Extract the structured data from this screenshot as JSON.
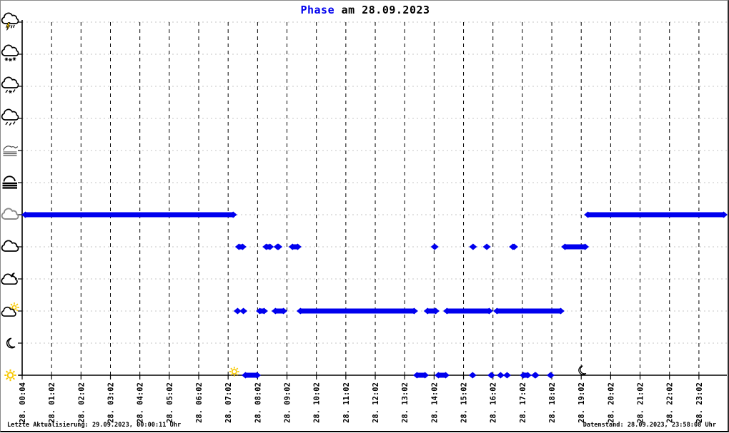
{
  "title": {
    "keyword": "Phase",
    "rest": " am 28.09.2023"
  },
  "footer": {
    "left": "Letzte Aktualisierung: 29.09.2023, 00:00:11 Uhr",
    "right": "Datenstand: 28.09.2023, 23:58:08 Uhr"
  },
  "colors": {
    "series": "#0000ee",
    "title_highlight": "#0000ee",
    "axis": "#000000",
    "grid_vertical": "#000000",
    "grid_horizontal": "#c4c4c4",
    "sun_yellow": "#f7c800",
    "overcast_gray": "#8a8a8a",
    "icon_black": "#000000"
  },
  "chart_data": {
    "type": "scatter",
    "title": "Phase am 28.09.2023",
    "xlabel": "",
    "ylabel": "",
    "x_range_hours": [
      0,
      24
    ],
    "grid": "both-dashed",
    "x_tick_labels": [
      "28. 00:04",
      "28. 01:02",
      "28. 02:02",
      "28. 03:02",
      "28. 04:02",
      "28. 05:02",
      "28. 06:02",
      "28. 07:02",
      "28. 08:02",
      "28. 09:02",
      "28. 10:02",
      "28. 11:02",
      "28. 12:02",
      "28. 13:02",
      "28. 14:02",
      "28. 15:02",
      "28. 16:02",
      "28. 17:02",
      "28. 18:02",
      "28. 19:02",
      "28. 20:02",
      "28. 21:02",
      "28. 22:02",
      "28. 23:02"
    ],
    "y_levels": [
      "thunderstorm",
      "snow",
      "sleet",
      "rain",
      "mist",
      "fog",
      "overcast",
      "cloudy",
      "partly-cloudy-night",
      "partly-cloudy-day",
      "clear-night",
      "clear-day"
    ],
    "series": [
      {
        "name": "phase",
        "color": "#0000ee",
        "segments": [
          {
            "level": "overcast",
            "runs": [
              [
                0.0,
                7.28
              ],
              [
                19.12,
                23.95
              ]
            ]
          },
          {
            "level": "cloudy",
            "runs": [
              [
                7.26,
                7.6
              ],
              [
                8.19,
                8.53
              ],
              [
                8.57,
                8.82
              ],
              [
                9.08,
                9.47
              ],
              [
                13.99,
                14.05
              ],
              [
                15.25,
                15.4
              ],
              [
                15.69,
                15.89
              ],
              [
                16.57,
                16.83
              ],
              [
                18.34,
                19.24
              ]
            ]
          },
          {
            "level": "partly-cloudy-day",
            "runs": [
              [
                7.26,
                7.38
              ],
              [
                7.46,
                7.58
              ],
              [
                7.97,
                8.33
              ],
              [
                8.5,
                8.99
              ],
              [
                9.35,
                13.43
              ],
              [
                13.67,
                14.16
              ],
              [
                14.33,
                15.98
              ],
              [
                16.03,
                18.41
              ]
            ]
          },
          {
            "level": "clear-day",
            "runs": [
              [
                7.48,
                8.09
              ],
              [
                13.31,
                13.8
              ],
              [
                14.04,
                14.5
              ],
              [
                15.25,
                15.37
              ],
              [
                15.86,
                16.03
              ],
              [
                16.2,
                16.32
              ],
              [
                16.44,
                16.52
              ],
              [
                16.93,
                17.29
              ],
              [
                17.32,
                17.56
              ],
              [
                17.9,
                18.02
              ]
            ]
          }
        ]
      }
    ],
    "markers": [
      {
        "type": "sunrise-sun",
        "hour": 7.21
      },
      {
        "type": "sunset-moon",
        "hour": 19.02
      }
    ]
  }
}
